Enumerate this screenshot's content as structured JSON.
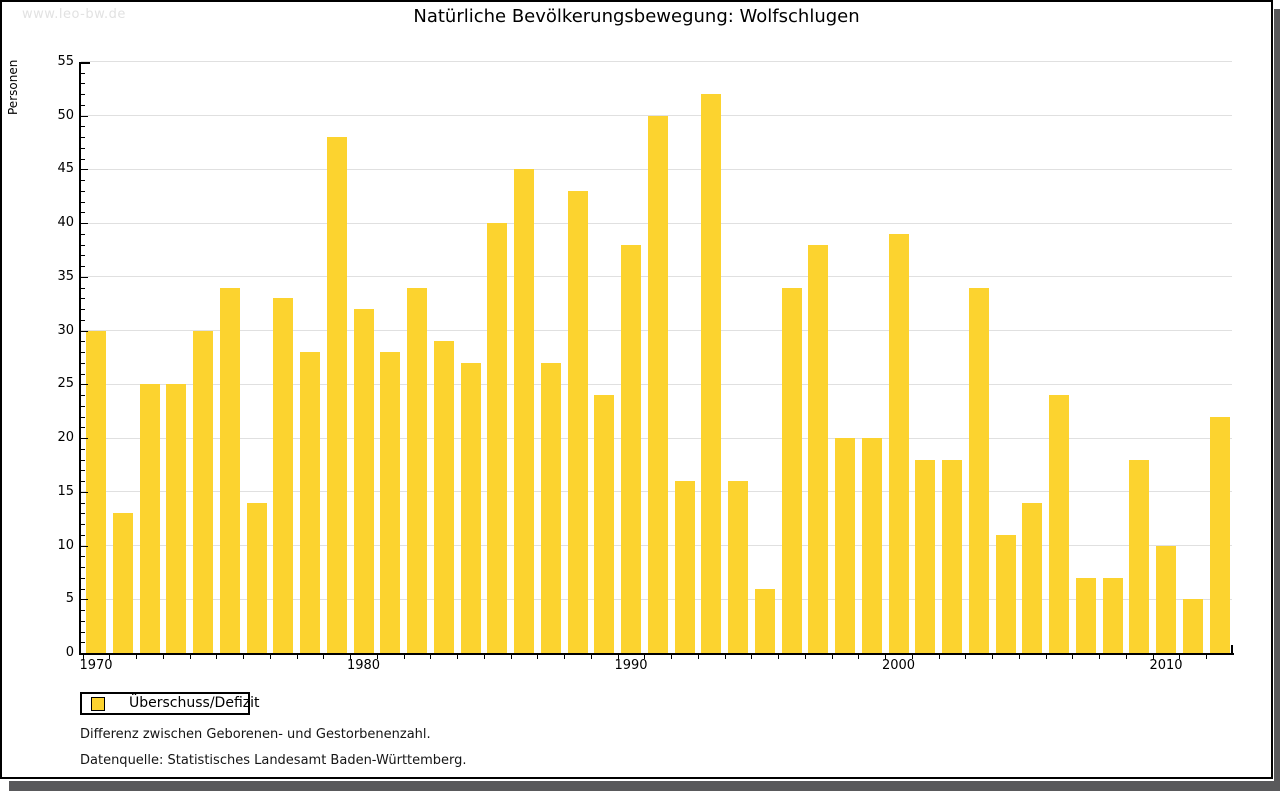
{
  "watermark": "www.leo-bw.de",
  "title": "Natürliche Bevölkerungsbewegung: Wolfschlugen",
  "legend": {
    "label": "Überschuss/Defizit"
  },
  "footnotes": [
    "Differenz zwischen Geborenen- und Gestorbenenzahl.",
    "Datenquelle: Statistisches Landesamt Baden-Württemberg."
  ],
  "colors": {
    "bar": "#fcd32f",
    "grid": "#e0e0e0",
    "axis": "#000000",
    "shadow": "#59595b",
    "watermark": "#e2e2e2"
  },
  "chart_data": {
    "type": "bar",
    "title": "Natürliche Bevölkerungsbewegung: Wolfschlugen",
    "xlabel": "",
    "ylabel": "Personen",
    "ylim": [
      0,
      55
    ],
    "y_tick_step": 5,
    "y_minor_tick_step": 1,
    "grid": true,
    "legend_position": "bottom-left",
    "series_name": "Überschuss/Defizit",
    "x_decade_labels": [
      1970,
      1980,
      1990,
      2000,
      2010
    ],
    "years": [
      1970,
      1971,
      1972,
      1973,
      1974,
      1975,
      1976,
      1977,
      1978,
      1979,
      1980,
      1981,
      1982,
      1983,
      1984,
      1985,
      1986,
      1987,
      1988,
      1989,
      1990,
      1991,
      1992,
      1993,
      1994,
      1995,
      1996,
      1997,
      1998,
      1999,
      2000,
      2001,
      2002,
      2003,
      2004,
      2005,
      2006,
      2007,
      2008,
      2009,
      2010,
      2011,
      2012
    ],
    "values": [
      30,
      13,
      25,
      25,
      30,
      34,
      14,
      33,
      28,
      48,
      32,
      28,
      34,
      29,
      27,
      40,
      45,
      27,
      43,
      24,
      38,
      50,
      16,
      52,
      16,
      6,
      34,
      38,
      20,
      20,
      39,
      18,
      18,
      34,
      11,
      14,
      24,
      7,
      7,
      18,
      10,
      5,
      22
    ]
  }
}
